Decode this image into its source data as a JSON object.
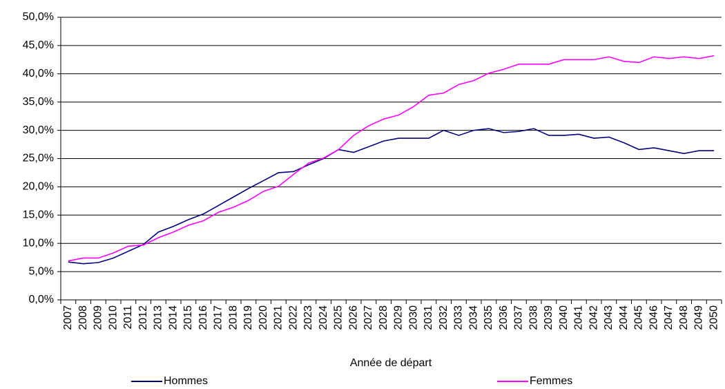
{
  "chart_data": {
    "type": "line",
    "x_label": "Année de départ",
    "categories": [
      2007,
      2008,
      2009,
      2010,
      2011,
      2012,
      2013,
      2014,
      2015,
      2016,
      2017,
      2018,
      2019,
      2020,
      2021,
      2022,
      2023,
      2024,
      2025,
      2026,
      2027,
      2028,
      2029,
      2030,
      2031,
      2032,
      2033,
      2034,
      2035,
      2036,
      2037,
      2038,
      2039,
      2040,
      2041,
      2042,
      2043,
      2044,
      2045,
      2046,
      2047,
      2048,
      2049,
      2050
    ],
    "series": [
      {
        "name": "Hommes",
        "color": "#000080",
        "values": [
          6.7,
          6.4,
          6.6,
          7.4,
          8.6,
          9.8,
          12.0,
          13.0,
          14.2,
          15.2,
          16.7,
          18.2,
          19.7,
          21.1,
          22.5,
          22.7,
          23.9,
          25.0,
          26.6,
          26.1,
          27.1,
          28.1,
          28.6,
          28.6,
          28.6,
          30.0,
          29.1,
          30.0,
          30.3,
          29.6,
          29.8,
          30.3,
          29.1,
          29.1,
          29.3,
          28.6,
          28.8,
          27.8,
          26.6,
          26.9,
          26.4,
          25.9,
          26.4,
          26.4
        ]
      },
      {
        "name": "Femmes",
        "color": "#ff00ff",
        "values": [
          6.9,
          7.4,
          7.4,
          8.3,
          9.5,
          9.7,
          11.0,
          12.0,
          13.2,
          14.0,
          15.5,
          16.4,
          17.6,
          19.2,
          20.1,
          22.2,
          24.2,
          25.1,
          26.6,
          29.1,
          30.8,
          32.0,
          32.7,
          34.2,
          36.2,
          36.6,
          38.1,
          38.8,
          40.1,
          40.8,
          41.7,
          41.7,
          41.7,
          42.5,
          42.5,
          42.5,
          43.0,
          42.2,
          42.0,
          43.0,
          42.7,
          43.0,
          42.7,
          43.2
        ]
      }
    ],
    "ylim": [
      0,
      50
    ],
    "yticks": [
      {
        "value": 0,
        "label": "0,0%"
      },
      {
        "value": 5,
        "label": "5,0%"
      },
      {
        "value": 10,
        "label": "10,0%"
      },
      {
        "value": 15,
        "label": "15,0%"
      },
      {
        "value": 20,
        "label": "20,0%"
      },
      {
        "value": 25,
        "label": "25,0%"
      },
      {
        "value": 30,
        "label": "30,0%"
      },
      {
        "value": 35,
        "label": "35,0%"
      },
      {
        "value": 40,
        "label": "40,0%"
      },
      {
        "value": 45,
        "label": "45,0%"
      },
      {
        "value": 50,
        "label": "50,0%"
      }
    ],
    "grid": true,
    "legend": "bottom"
  }
}
